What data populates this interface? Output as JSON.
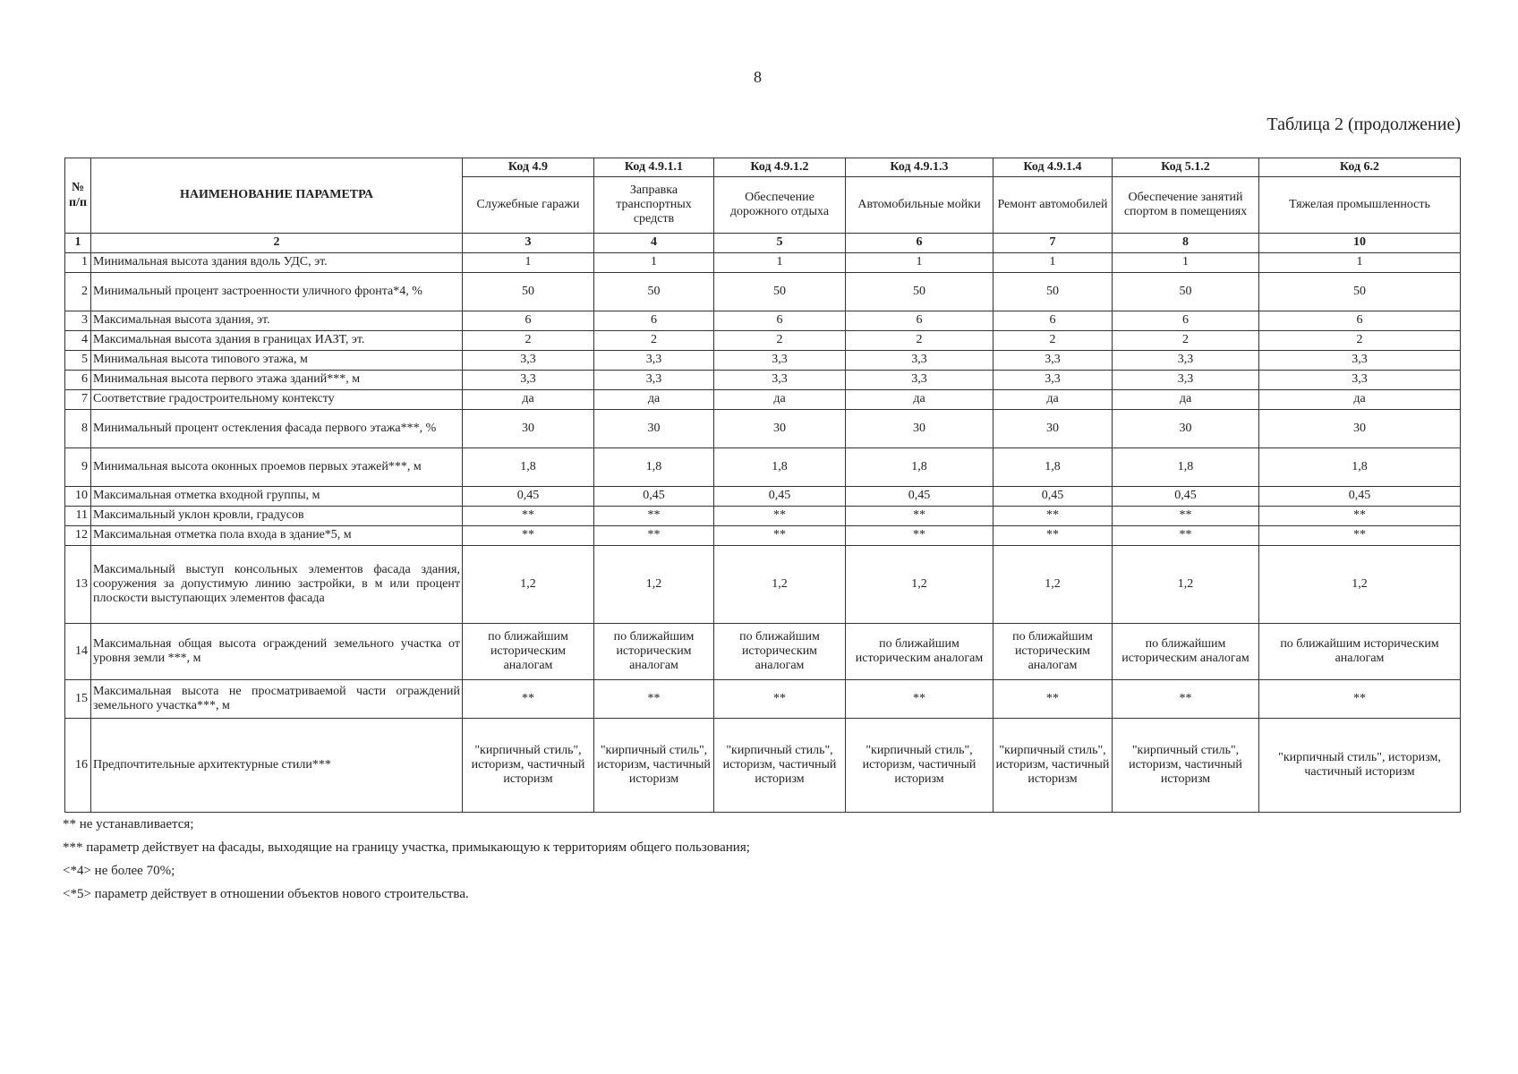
{
  "page_number": "8",
  "caption": "Таблица 2 (продолжение)",
  "header": {
    "no_label": "№ п/п",
    "param_label": "НАИМЕНОВАНИЕ ПАРАМЕТРА",
    "columns": [
      {
        "code": "Код 4.9",
        "name": "Служебные гаражи",
        "num": "3"
      },
      {
        "code": "Код 4.9.1.1",
        "name": "Заправка транспортных средств",
        "num": "4"
      },
      {
        "code": "Код 4.9.1.2",
        "name": "Обеспечение дорожного отдыха",
        "num": "5"
      },
      {
        "code": "Код 4.9.1.3",
        "name": "Автомобильные мойки",
        "num": "6"
      },
      {
        "code": "Код 4.9.1.4",
        "name": "Ремонт автомобилей",
        "num": "7"
      },
      {
        "code": "Код 5.1.2",
        "name": "Обеспечение занятий спортом в помещениях",
        "num": "8"
      },
      {
        "code": "Код 6.2",
        "name": "Тяжелая промышленность",
        "num": "10"
      }
    ],
    "num_col1": "1",
    "num_col2": "2"
  },
  "rows": [
    {
      "n": "1",
      "param": "Минимальная высота здания вдоль УДС, эт.",
      "values": [
        "1",
        "1",
        "1",
        "1",
        "1",
        "1",
        "1"
      ]
    },
    {
      "n": "2",
      "param": "Минимальный процент застроенности уличного фронта*4, %",
      "values": [
        "50",
        "50",
        "50",
        "50",
        "50",
        "50",
        "50"
      ]
    },
    {
      "n": "3",
      "param": "Максимальная высота здания, эт.",
      "values": [
        "6",
        "6",
        "6",
        "6",
        "6",
        "6",
        "6"
      ]
    },
    {
      "n": "4",
      "param": "Максимальная высота здания в границах ИАЗТ, эт.",
      "values": [
        "2",
        "2",
        "2",
        "2",
        "2",
        "2",
        "2"
      ]
    },
    {
      "n": "5",
      "param": "Минимальная высота типового этажа, м",
      "values": [
        "3,3",
        "3,3",
        "3,3",
        "3,3",
        "3,3",
        "3,3",
        "3,3"
      ]
    },
    {
      "n": "6",
      "param": "Минимальная высота первого этажа зданий***, м",
      "values": [
        "3,3",
        "3,3",
        "3,3",
        "3,3",
        "3,3",
        "3,3",
        "3,3"
      ]
    },
    {
      "n": "7",
      "param": "Соответствие градостроительному контексту",
      "values": [
        "да",
        "да",
        "да",
        "да",
        "да",
        "да",
        "да"
      ]
    },
    {
      "n": "8",
      "param": "Минимальный процент остекления фасада первого этажа***, %",
      "values": [
        "30",
        "30",
        "30",
        "30",
        "30",
        "30",
        "30"
      ]
    },
    {
      "n": "9",
      "param": "Минимальная высота оконных проемов первых этажей***, м",
      "values": [
        "1,8",
        "1,8",
        "1,8",
        "1,8",
        "1,8",
        "1,8",
        "1,8"
      ]
    },
    {
      "n": "10",
      "param": "Максимальная отметка входной группы, м",
      "values": [
        "0,45",
        "0,45",
        "0,45",
        "0,45",
        "0,45",
        "0,45",
        "0,45"
      ]
    },
    {
      "n": "11",
      "param": "Максимальный уклон кровли, градусов",
      "values": [
        "**",
        "**",
        "**",
        "**",
        "**",
        "**",
        "**"
      ]
    },
    {
      "n": "12",
      "param": "Максимальная отметка пола входа в здание*5, м",
      "values": [
        "**",
        "**",
        "**",
        "**",
        "**",
        "**",
        "**"
      ]
    },
    {
      "n": "13",
      "param": "Максимальный выступ консольных элементов фасада здания, сооружения за допустимую линию застройки, в м или процент плоскости выступающих элементов фасада",
      "values": [
        "1,2",
        "1,2",
        "1,2",
        "1,2",
        "1,2",
        "1,2",
        "1,2"
      ]
    },
    {
      "n": "14",
      "param": "Максимальная общая высота ограждений земельного участка от уровня земли ***, м",
      "values": [
        "по ближайшим историческим аналогам",
        "по ближайшим историческим аналогам",
        "по ближайшим историческим аналогам",
        "по ближайшим историческим аналогам",
        "по ближайшим историческим аналогам",
        "по ближайшим историческим аналогам",
        "по ближайшим историческим аналогам"
      ]
    },
    {
      "n": "15",
      "param": "Максимальная высота не просматриваемой части ограждений земельного участка***, м",
      "values": [
        "**",
        "**",
        "**",
        "**",
        "**",
        "**",
        "**"
      ]
    },
    {
      "n": "16",
      "param": "Предпочтительные архитектурные стили***",
      "values": [
        "\"кирпичный стиль\", историзм, частичный историзм",
        "\"кирпичный стиль\", историзм, частичный историзм",
        "\"кирпичный стиль\", историзм, частичный историзм",
        "\"кирпичный стиль\", историзм, частичный историзм",
        "\"кирпичный стиль\", историзм, частичный историзм",
        "\"кирпичный стиль\", историзм, частичный историзм",
        "\"кирпичный стиль\", историзм, частичный историзм"
      ]
    }
  ],
  "footnotes": [
    "** не устанавливается;",
    "*** параметр действует на фасады, выходящие на границу участка, примыкающую к территориям общего пользования;",
    "<*4> не более 70%;",
    "<*5> параметр действует в отношении объектов нового строительства."
  ]
}
